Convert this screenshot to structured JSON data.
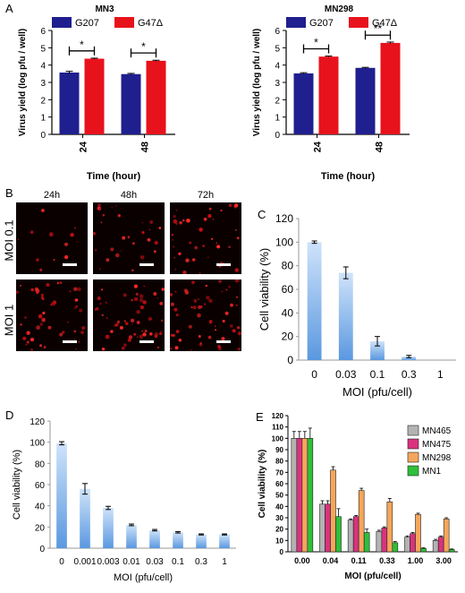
{
  "panel_labels": [
    "A",
    "B",
    "C",
    "D",
    "E"
  ],
  "microscopy": {
    "columns": [
      "24h",
      "48h",
      "72h"
    ],
    "rows": [
      "MOI 0.1",
      "MOI 1"
    ]
  },
  "chart_data": [
    {
      "id": "A1",
      "type": "bar",
      "title": "MN3",
      "xlabel": "Time (hour)",
      "ylabel": "Virus yield (log pfu / well)",
      "categories": [
        "24",
        "48"
      ],
      "ylim": [
        0,
        6
      ],
      "yticks": [
        0,
        1,
        2,
        3,
        4,
        5,
        6
      ],
      "series": [
        {
          "name": "G207",
          "color": "#1f1f8f",
          "values": [
            3.57,
            3.48
          ],
          "errors": [
            0.07,
            0.04
          ]
        },
        {
          "name": "G47Δ",
          "color": "#e8121c",
          "values": [
            4.37,
            4.25
          ],
          "errors": [
            0.03,
            0.03
          ]
        }
      ],
      "annotations": [
        "*",
        "*"
      ],
      "legend": "top"
    },
    {
      "id": "A2",
      "type": "bar",
      "title": "MN298",
      "xlabel": "Time (hour)",
      "ylabel": "Virus yield (log pfu / well)",
      "categories": [
        "24",
        "48"
      ],
      "ylim": [
        0,
        6
      ],
      "yticks": [
        0,
        1,
        2,
        3,
        4,
        5,
        6
      ],
      "series": [
        {
          "name": "G207",
          "color": "#1f1f8f",
          "values": [
            3.52,
            3.84
          ],
          "errors": [
            0.04,
            0.03
          ]
        },
        {
          "name": "G47Δ",
          "color": "#e8121c",
          "values": [
            4.49,
            5.28
          ],
          "errors": [
            0.03,
            0.05
          ]
        }
      ],
      "annotations": [
        "*",
        "**"
      ],
      "legend": "top"
    },
    {
      "id": "C",
      "type": "bar",
      "xlabel": "MOI (pfu/cell)",
      "ylabel": "Cell viability (%)",
      "categories": [
        "0",
        "0.03",
        "0.1",
        "0.3",
        "1"
      ],
      "ylim": [
        0,
        120
      ],
      "yticks": [
        0,
        20,
        40,
        60,
        80,
        100,
        120
      ],
      "values": [
        100,
        74,
        16,
        3,
        0
      ],
      "errors": [
        1,
        5,
        4,
        1,
        0
      ],
      "color": "#7fb3ea"
    },
    {
      "id": "D",
      "type": "bar",
      "xlabel": "MOI (pfu/cell)",
      "ylabel": "Cell viability (%)",
      "categories": [
        "0",
        "0.001",
        "0.003",
        "0.01",
        "0.03",
        "0.1",
        "0.3",
        "1"
      ],
      "ylim": [
        0,
        120
      ],
      "yticks": [
        0,
        20,
        40,
        60,
        80,
        100,
        120
      ],
      "values": [
        99,
        56,
        38,
        22,
        17,
        15,
        13,
        13
      ],
      "errors": [
        1.5,
        5,
        1.5,
        0.8,
        0.7,
        0.7,
        0.5,
        0.5
      ],
      "color": "#7fb3ea"
    },
    {
      "id": "E",
      "type": "bar",
      "xlabel": "MOI (pfu/cell)",
      "ylabel": "Cell viability (%)",
      "categories": [
        "0.00",
        "0.04",
        "0.11",
        "0.33",
        "1.00",
        "3.00"
      ],
      "ylim": [
        0,
        120
      ],
      "yticks": [
        0,
        10,
        20,
        30,
        40,
        50,
        60,
        70,
        80,
        90,
        100,
        110,
        120
      ],
      "series": [
        {
          "name": "MN465",
          "color": "#b3b3b3",
          "values": [
            100,
            42,
            28,
            18,
            13,
            10
          ],
          "errors": [
            6,
            3,
            1,
            1,
            1,
            1
          ]
        },
        {
          "name": "MN475",
          "color": "#d9337f",
          "values": [
            100,
            42,
            31,
            21,
            16,
            13
          ],
          "errors": [
            6,
            3,
            1,
            1,
            1,
            1
          ]
        },
        {
          "name": "MN298",
          "color": "#f5a65b",
          "values": [
            100,
            72,
            54,
            44,
            33,
            29
          ],
          "errors": [
            6,
            3,
            2,
            3,
            1,
            1
          ]
        },
        {
          "name": "MN1",
          "color": "#2fbf3a",
          "values": [
            100,
            31,
            17,
            8,
            3,
            2
          ],
          "errors": [
            9,
            7,
            3,
            1,
            0.5,
            0.5
          ]
        }
      ],
      "legend": "top-right"
    }
  ]
}
